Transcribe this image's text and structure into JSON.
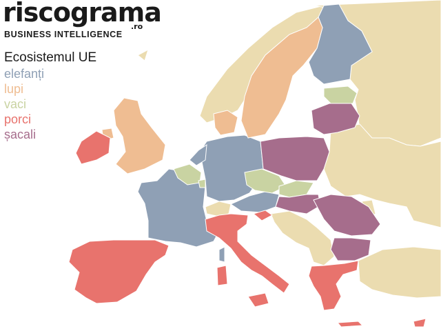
{
  "logo": {
    "name": "riscograma",
    "tld": ".ro",
    "tagline": "BUSINESS INTELLIGENCE"
  },
  "legend": {
    "title": "Ecosistemul UE",
    "items": [
      {
        "label": "elefanți",
        "color": "#8fa0b5"
      },
      {
        "label": "lupi",
        "color": "#efbd92"
      },
      {
        "label": "vaci",
        "color": "#c9d3a2"
      },
      {
        "label": "porci",
        "color": "#e8736d"
      },
      {
        "label": "șacali",
        "color": "#a66d8c"
      }
    ]
  },
  "colors": {
    "non_eu": "#ebdcb0",
    "sea": "#ffffff"
  }
}
